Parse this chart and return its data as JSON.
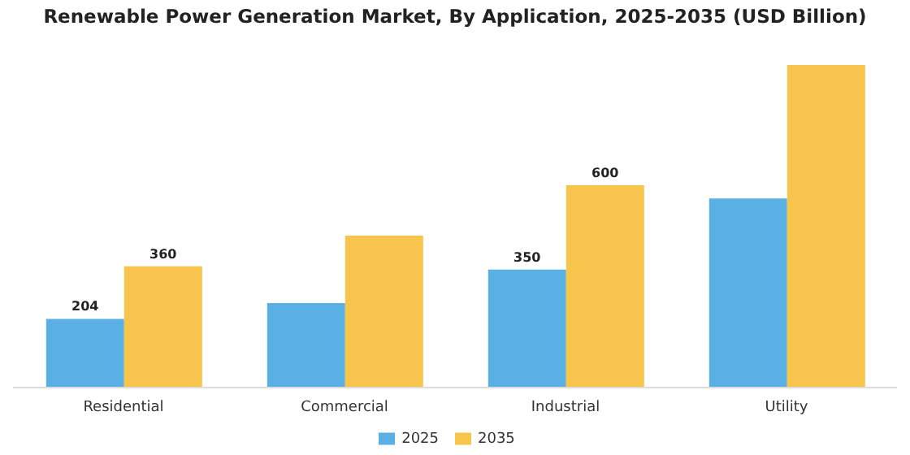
{
  "chart_data": {
    "type": "bar",
    "title": "Renewable Power Generation Market, By Application, 2025-2035 (USD Billion)",
    "categories": [
      "Residential",
      "Commercial",
      "Industrial",
      "Utility"
    ],
    "series": [
      {
        "name": "2025",
        "color": "#5aafe4",
        "values": [
          204,
          251,
          350,
          561
        ],
        "value_labels": [
          "204",
          null,
          "350",
          null
        ]
      },
      {
        "name": "2035",
        "color": "#f7c44c",
        "values": [
          360,
          451,
          600,
          957
        ],
        "value_labels": [
          "360",
          null,
          "600",
          null
        ]
      }
    ],
    "grid": false,
    "legend": "bottom"
  }
}
